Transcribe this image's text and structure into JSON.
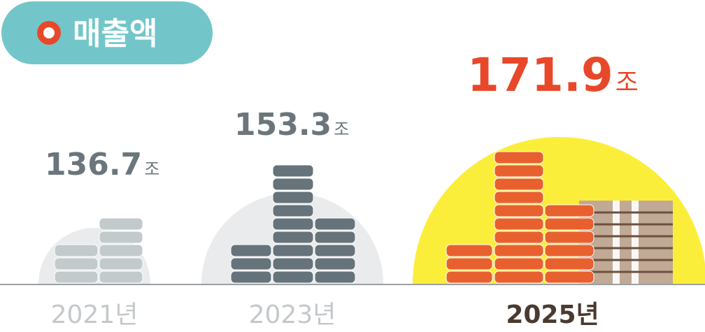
{
  "chart_data": {
    "type": "coin-stack",
    "title": "매출액",
    "categories": [
      "2021년",
      "2023년",
      "2025년"
    ],
    "values": [
      136.7,
      153.3,
      171.9
    ],
    "unit": "조",
    "colors": [
      "#c3cacc",
      "#66737a",
      "#e9602f"
    ],
    "label_colors": [
      "#6b767c",
      "#6b767c",
      "#e8482a"
    ],
    "category_colors": [
      "#c4c8ca",
      "#c4c8ca",
      "#4a3a30"
    ],
    "highlight_color": "#fbee3a",
    "backdrop_color": "#e9ebec"
  }
}
